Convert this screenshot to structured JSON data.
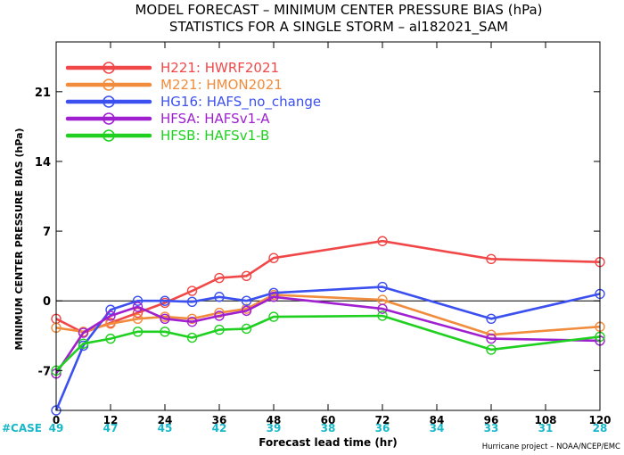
{
  "chart_data": {
    "type": "line",
    "title": "MODEL FORECAST – MINIMUM CENTER PRESSURE BIAS (hPa)",
    "subtitle": "STATISTICS FOR A SINGLE STORM – al182021_SAM",
    "xlabel": "Forecast lead time (hr)",
    "ylabel": "MINIMUM CENTER PRESSURE BIAS (hPa)",
    "xlim": [
      0,
      120
    ],
    "ylim": [
      -11,
      26
    ],
    "xticks": [
      "0",
      "12",
      "24",
      "36",
      "48",
      "60",
      "72",
      "84",
      "96",
      "108",
      "120"
    ],
    "yticks": [
      "-7",
      "0",
      "7",
      "14",
      "21"
    ],
    "grid": false,
    "zero_line": true,
    "legend_position": "top-left",
    "case_label": "#CASE",
    "case_counts": [
      "49",
      "47",
      "45",
      "42",
      "39",
      "38",
      "36",
      "34",
      "33",
      "31",
      "28"
    ],
    "credit": "Hurricane project – NOAA/NCEP/EMC",
    "series": [
      {
        "name": "H221: HWRF2021",
        "color": "#f04848",
        "x": [
          0,
          6,
          12,
          18,
          24,
          30,
          36,
          42,
          48,
          72,
          96,
          120
        ],
        "y": [
          -1.8,
          -3.2,
          -2.2,
          -1.2,
          -0.2,
          1.0,
          2.3,
          2.5,
          4.3,
          6.0,
          4.2,
          3.9
        ]
      },
      {
        "name": "M221: HMON2021",
        "color": "#f08c3c",
        "x": [
          0,
          6,
          12,
          18,
          24,
          30,
          36,
          42,
          48,
          72,
          96,
          120
        ],
        "y": [
          -2.7,
          -3.1,
          -2.3,
          -1.8,
          -1.6,
          -1.8,
          -1.2,
          -0.8,
          0.6,
          0.1,
          -3.4,
          -2.6
        ]
      },
      {
        "name": "HG16: HAFS_no_change",
        "color": "#3c50f0",
        "x": [
          0,
          6,
          12,
          18,
          24,
          30,
          36,
          42,
          48,
          72,
          96,
          120
        ],
        "y": [
          -11.0,
          -4.5,
          -0.9,
          0.0,
          0.0,
          -0.1,
          0.4,
          0.0,
          0.8,
          1.4,
          -1.8,
          0.7
        ]
      },
      {
        "name": "HFSA: HAFSv1-A",
        "color": "#a020d0",
        "x": [
          0,
          6,
          12,
          18,
          24,
          30,
          36,
          42,
          48,
          72,
          96,
          120
        ],
        "y": [
          -7.3,
          -3.2,
          -1.5,
          -0.6,
          -1.8,
          -2.1,
          -1.5,
          -1.0,
          0.4,
          -0.8,
          -3.8,
          -4.0
        ]
      },
      {
        "name": "HFSB: HAFSv1-B",
        "color": "#20d020",
        "x": [
          0,
          6,
          12,
          18,
          24,
          30,
          36,
          42,
          48,
          72,
          96,
          120
        ],
        "y": [
          -7.0,
          -4.3,
          -3.8,
          -3.1,
          -3.1,
          -3.7,
          -2.9,
          -2.8,
          -1.6,
          -1.5,
          -4.9,
          -3.6
        ]
      }
    ]
  }
}
